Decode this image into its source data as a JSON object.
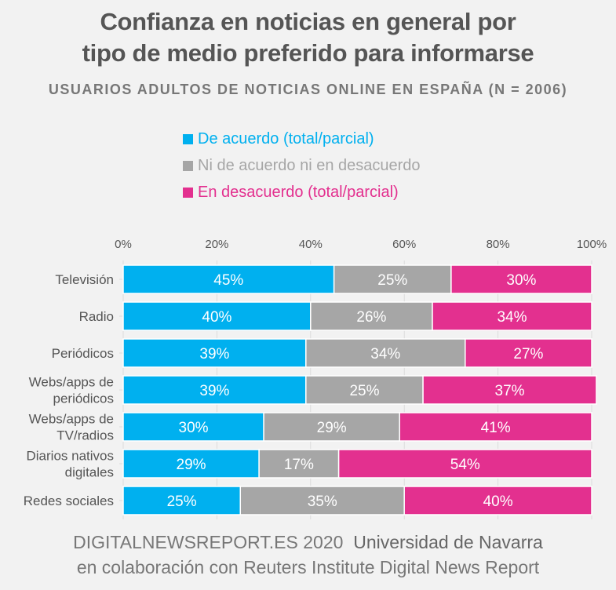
{
  "header": {
    "title_line1": "Confianza en noticias en general por",
    "title_line2": "tipo de medio preferido para informarse",
    "subtitle": "USUARIOS ADULTOS DE NOTICIAS ONLINE EN ESPAÑA (N = 2006)"
  },
  "footer": {
    "line1_light": "DIGITALNEWSREPORT.ES 2020",
    "line1_bold": "Universidad de Navarra",
    "line2": "en colaboración con Reuters Institute Digital News Report"
  },
  "chart_data": {
    "type": "bar",
    "orientation": "horizontal",
    "stacked": true,
    "title": "Confianza en noticias en general por tipo de medio preferido para informarse",
    "subtitle": "USUARIOS ADULTOS DE NOTICIAS ONLINE EN ESPAÑA (N = 2006)",
    "xlabel": "",
    "ylabel": "",
    "xlim": [
      0,
      100
    ],
    "x_ticks": [
      "0%",
      "20%",
      "40%",
      "60%",
      "80%",
      "100%"
    ],
    "x_tick_values": [
      0,
      20,
      40,
      60,
      80,
      100
    ],
    "x_axis_position": "top",
    "grid": true,
    "legend_position": "top-center",
    "categories": [
      [
        "Televisión"
      ],
      [
        "Radio"
      ],
      [
        "Periódicos"
      ],
      [
        "Webs/apps de",
        "periódicos"
      ],
      [
        "Webs/apps de",
        "TV/radios"
      ],
      [
        "Diarios nativos",
        "digitales"
      ],
      [
        "Redes sociales"
      ]
    ],
    "series": [
      {
        "name": "De acuerdo (total/parcial)",
        "color": "#00b0ef",
        "values": [
          45,
          40,
          39,
          39,
          30,
          29,
          25
        ]
      },
      {
        "name": "Ni de acuerdo ni en desacuerdo",
        "color": "#a6a6a6",
        "values": [
          25,
          26,
          34,
          25,
          29,
          17,
          35
        ]
      },
      {
        "name": "En desacuerdo (total/parcial)",
        "color": "#e3308f",
        "values": [
          30,
          34,
          27,
          37,
          41,
          54,
          40
        ]
      }
    ],
    "legend_text_colors": [
      "#00b0ef",
      "#a6a6a6",
      "#e3308f"
    ]
  }
}
